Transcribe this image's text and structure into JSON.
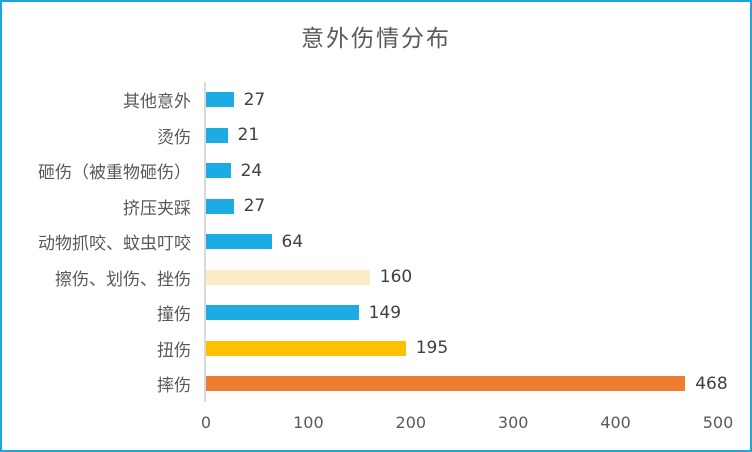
{
  "window": {
    "border_color": "#1BA7DE",
    "background": "#FFFFFF"
  },
  "chart_data": {
    "type": "bar",
    "orientation": "horizontal",
    "title": "意外伤情分布",
    "categories": [
      "其他意外",
      "烫伤",
      "砸伤（被重物砸伤）",
      "挤压夹踩",
      "动物抓咬、蚊虫叮咬",
      "擦伤、划伤、挫伤",
      "撞伤",
      "扭伤",
      "摔伤"
    ],
    "values": [
      27,
      21,
      24,
      27,
      64,
      160,
      149,
      195,
      468
    ],
    "bar_colors": [
      "#1CACE3",
      "#1CACE3",
      "#1CACE3",
      "#1CACE3",
      "#1CACE3",
      "#FBEBC6",
      "#1CACE3",
      "#FFC000",
      "#ED7D31"
    ],
    "xlim": [
      0,
      500
    ],
    "x_ticks": [
      0,
      100,
      200,
      300,
      400,
      500
    ],
    "grid": false,
    "value_labels": true,
    "legend": "none"
  },
  "styles": {
    "border_color": "#1BA7DE",
    "title_color": "#595959",
    "label_color": "#595959",
    "value_color": "#404040",
    "tick_color": "#595959",
    "axis_line_color": "#D9D9D9"
  }
}
